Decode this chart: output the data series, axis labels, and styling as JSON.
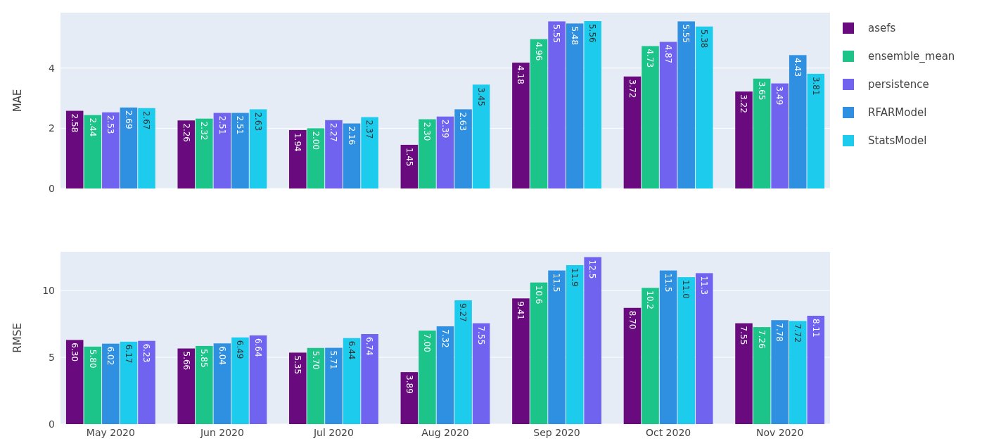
{
  "chart_data": [
    {
      "type": "bar",
      "ylabel": "MAE",
      "categories": [
        null,
        null,
        null,
        null,
        null,
        null,
        null
      ],
      "ylim": [
        0,
        5.84
      ],
      "yticks": [
        0,
        2,
        4
      ],
      "grid": "y",
      "legend": "top right",
      "tick_labels": "y",
      "series": [
        {
          "name": "asefs",
          "color": "#6a0a7f",
          "values": [
            2.58,
            2.26,
            1.94,
            1.45,
            4.18,
            3.72,
            3.22
          ],
          "value_labels": [
            "2.58",
            "2.26",
            "1.94",
            "1.45",
            "4.18",
            "3.72",
            "3.22"
          ]
        },
        {
          "name": "ensemble_mean",
          "color": "#1dc48a",
          "values": [
            2.44,
            2.32,
            2.0,
            2.3,
            4.96,
            4.73,
            3.65
          ],
          "value_labels": [
            "2.44",
            "2.32",
            "2.00",
            "2.30",
            "4.96",
            "4.73",
            "3.65"
          ]
        },
        {
          "name": "persistence",
          "color": "#6f63f0",
          "values": [
            2.53,
            2.51,
            2.27,
            2.39,
            5.55,
            4.87,
            3.49
          ],
          "value_labels": [
            "2.53",
            "2.51",
            "2.27",
            "2.39",
            "5.55",
            "4.87",
            "3.49"
          ]
        },
        {
          "name": "RFARModel",
          "color": "#2f8fe0",
          "values": [
            2.69,
            2.51,
            2.16,
            2.63,
            5.48,
            5.55,
            4.43
          ],
          "value_labels": [
            "2.69",
            "2.51",
            "2.16",
            "2.63",
            "5.48",
            "5.55",
            "4.43"
          ]
        },
        {
          "name": "StatsModel",
          "color": "#1dcbed",
          "values": [
            2.67,
            2.63,
            2.37,
            3.45,
            5.56,
            5.38,
            3.81
          ],
          "value_labels": [
            "2.67",
            "2.63",
            "2.37",
            "3.45",
            "5.56",
            "5.38",
            "3.81"
          ]
        }
      ]
    },
    {
      "type": "bar",
      "ylabel": "RMSE",
      "categories": [
        "May 2020",
        "Jun 2020",
        "Jul 2020",
        "Aug 2020",
        "Sep 2020",
        "Oct 2020",
        "Nov 2020"
      ],
      "ylim": [
        0,
        12.9
      ],
      "yticks": [
        0,
        5,
        10
      ],
      "grid": "y",
      "series": [
        {
          "color": "#6a0a7f",
          "values": [
            6.3,
            5.66,
            5.35,
            3.89,
            9.41,
            8.7,
            7.55
          ],
          "value_labels": [
            "6.30",
            "5.66",
            "5.35",
            "3.89",
            "9.41",
            "8.70",
            "7.55"
          ]
        },
        {
          "color": "#1dc48a",
          "values": [
            5.8,
            5.85,
            5.7,
            7.0,
            10.6,
            10.2,
            7.26
          ],
          "value_labels": [
            "5.80",
            "5.85",
            "5.70",
            "7.00",
            "10.6",
            "10.2",
            "7.26"
          ]
        },
        {
          "color": "#2f8fe0",
          "values": [
            6.02,
            6.04,
            5.71,
            7.32,
            11.5,
            11.5,
            7.78
          ],
          "value_labels": [
            "6.02",
            "6.04",
            "5.71",
            "7.32",
            "11.5",
            "11.5",
            "7.78"
          ]
        },
        {
          "color": "#1dcbed",
          "values": [
            6.17,
            6.49,
            6.44,
            9.27,
            11.9,
            11.0,
            7.72
          ],
          "value_labels": [
            "6.17",
            "6.49",
            "6.44",
            "9.27",
            "11.9",
            "11.0",
            "7.72"
          ]
        },
        {
          "color": "#6f63f0",
          "values": [
            6.23,
            6.64,
            6.74,
            7.55,
            12.5,
            11.3,
            8.11
          ],
          "value_labels": [
            "6.23",
            "6.64",
            "6.74",
            "7.55",
            "12.5",
            "11.3",
            "8.11"
          ]
        }
      ]
    }
  ]
}
